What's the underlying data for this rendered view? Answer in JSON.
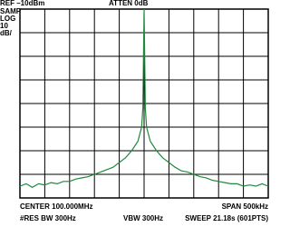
{
  "chart_data": {
    "type": "line",
    "ref_label": "REF –10dBm",
    "atten_label": "ATTEN 0dB",
    "side_labels": [
      "SAMP",
      "LOG",
      "10",
      "dB/"
    ],
    "center_label": "CENTER 100.000MHz",
    "span_label": "SPAN 500kHz",
    "rbw_label": "#RES BW 300Hz",
    "vbw_label": "VBW 300Hz",
    "sweep_label": "SWEEP 21.18s (601PTS)",
    "x": [
      99.75,
      99.7625,
      99.775,
      99.7875,
      99.8,
      99.8125,
      99.825,
      99.8375,
      99.85,
      99.8625,
      99.875,
      99.8875,
      99.9,
      99.9125,
      99.925,
      99.9375,
      99.95,
      99.9625,
      99.975,
      99.9875,
      99.995,
      99.9975,
      100,
      100.0025,
      100.005,
      100.0125,
      100.025,
      100.0375,
      100.05,
      100.0625,
      100.075,
      100.0875,
      100.1,
      100.1125,
      100.125,
      100.1375,
      100.15,
      100.1625,
      100.175,
      100.1875,
      100.2,
      100.2125,
      100.225,
      100.2375,
      100.25
    ],
    "series": [
      {
        "color": "#1f8a3c",
        "values": [
          -85,
          -84,
          -85.5,
          -84,
          -84.5,
          -83.5,
          -84,
          -83,
          -83,
          -82,
          -81.5,
          -81,
          -80,
          -79,
          -78,
          -77,
          -75,
          -73,
          -70,
          -66,
          -60,
          -52,
          -10,
          -52,
          -60,
          -66,
          -70,
          -73,
          -75,
          -77,
          -78.5,
          -79,
          -80,
          -81,
          -81.5,
          -82.5,
          -83,
          -83.5,
          -84,
          -84,
          -85,
          -84.5,
          -85,
          -84,
          -85
        ]
      }
    ],
    "xlim": [
      99.75,
      100.25
    ],
    "xticks": [
      99.75,
      99.8,
      99.85,
      99.9,
      99.95,
      100,
      100.05,
      100.1,
      100.15,
      100.2,
      100.25
    ],
    "ylim": [
      -90,
      -10
    ],
    "yticks": [
      -90,
      -80,
      -70,
      -60,
      -50,
      -40,
      -30,
      -20,
      -10
    ],
    "grid": true
  }
}
